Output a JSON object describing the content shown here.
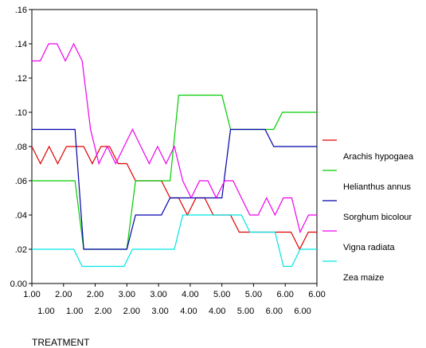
{
  "chart_data": {
    "type": "line",
    "title": "",
    "xlabel": "TREATMENT",
    "ylabel": "",
    "ylim": [
      0,
      0.16
    ],
    "yticks": [
      ".16",
      ".14",
      ".12",
      ".10",
      ".08",
      ".06",
      ".04",
      ".02",
      "0.00"
    ],
    "xtick_row1": [
      "1.00",
      "2.00",
      "2.00",
      "3.00",
      "3.00",
      "4.00",
      "5.00",
      "5.00",
      "6.00",
      "6.00"
    ],
    "xtick_row2": [
      "1.00",
      "1.00",
      "2.00",
      "2.00",
      "3.00",
      "4.00",
      "4.00",
      "5.00",
      "6.00",
      "6.00"
    ],
    "grid": false,
    "legend_position": "right",
    "legend": [
      "Arachis hypogaea",
      "Helianthus annus",
      "Sorghum bicolour",
      "Vigna radiata",
      "Zea maize"
    ],
    "series": [
      {
        "color": "#e00000",
        "values": [
          0.08,
          0.07,
          0.08,
          0.07,
          0.08,
          0.08,
          0.08,
          0.07,
          0.08,
          0.08,
          0.07,
          0.07,
          0.06,
          0.06,
          0.06,
          0.06,
          0.05,
          0.05,
          0.04,
          0.05,
          0.05,
          0.04,
          0.04,
          0.04,
          0.03,
          0.03,
          0.03,
          0.03,
          0.03,
          0.03,
          0.03,
          0.02,
          0.03,
          0.03
        ]
      },
      {
        "color": "#00cc00",
        "values": [
          0.06,
          0.06,
          0.06,
          0.06,
          0.06,
          0.06,
          0.02,
          0.02,
          0.02,
          0.02,
          0.02,
          0.02,
          0.06,
          0.06,
          0.06,
          0.06,
          0.06,
          0.11,
          0.11,
          0.11,
          0.11,
          0.11,
          0.11,
          0.09,
          0.09,
          0.09,
          0.09,
          0.09,
          0.09,
          0.1,
          0.1,
          0.1,
          0.1,
          0.1
        ]
      },
      {
        "color": "#0000aa",
        "values": [
          0.09,
          0.09,
          0.09,
          0.09,
          0.09,
          0.09,
          0.02,
          0.02,
          0.02,
          0.02,
          0.02,
          0.02,
          0.04,
          0.04,
          0.04,
          0.04,
          0.05,
          0.05,
          0.05,
          0.05,
          0.05,
          0.05,
          0.05,
          0.09,
          0.09,
          0.09,
          0.09,
          0.09,
          0.08,
          0.08,
          0.08,
          0.08,
          0.08,
          0.08
        ]
      },
      {
        "color": "#ee00ee",
        "values": [
          0.13,
          0.13,
          0.14,
          0.14,
          0.13,
          0.14,
          0.13,
          0.09,
          0.07,
          0.08,
          0.07,
          0.08,
          0.09,
          0.08,
          0.07,
          0.08,
          0.07,
          0.08,
          0.06,
          0.05,
          0.06,
          0.06,
          0.05,
          0.06,
          0.06,
          0.05,
          0.04,
          0.04,
          0.05,
          0.04,
          0.05,
          0.05,
          0.03,
          0.04,
          0.04
        ]
      },
      {
        "color": "#00e5e5",
        "values": [
          0.02,
          0.02,
          0.02,
          0.02,
          0.02,
          0.02,
          0.01,
          0.01,
          0.01,
          0.01,
          0.01,
          0.01,
          0.02,
          0.02,
          0.02,
          0.02,
          0.02,
          0.02,
          0.04,
          0.04,
          0.04,
          0.04,
          0.04,
          0.04,
          0.04,
          0.04,
          0.03,
          0.03,
          0.03,
          0.03,
          0.01,
          0.01,
          0.02,
          0.02,
          0.02
        ]
      }
    ]
  }
}
